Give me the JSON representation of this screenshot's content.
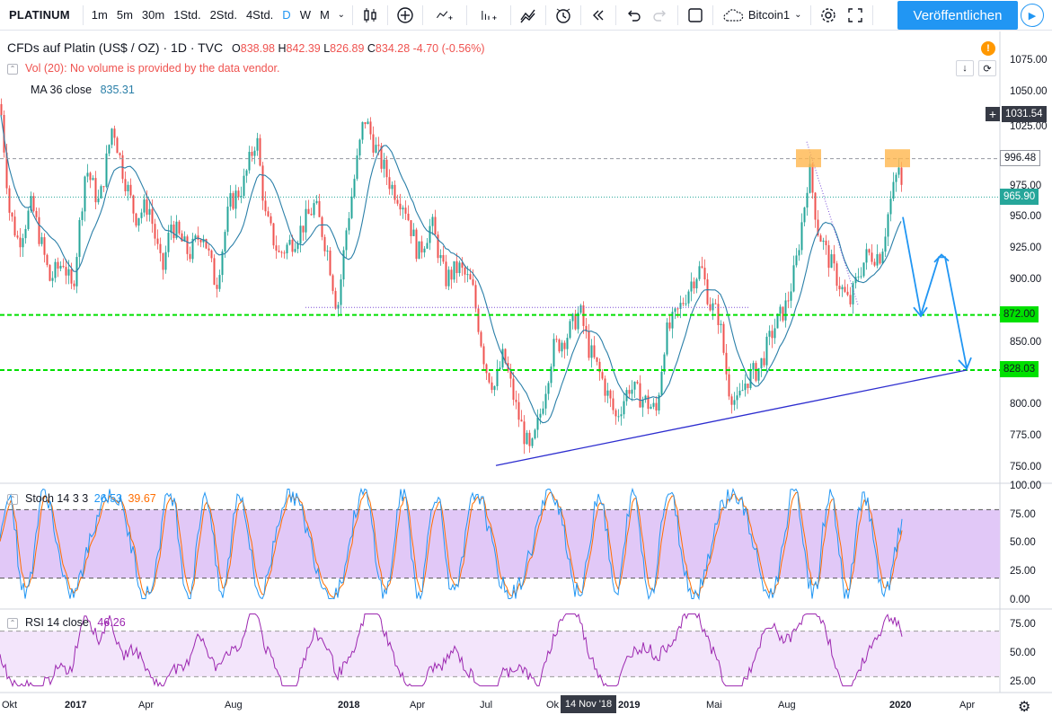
{
  "toolbar": {
    "symbol": "PLATINUM",
    "intervals": [
      "1m",
      "5m",
      "30m",
      "1Std.",
      "2Std.",
      "4Std.",
      "D",
      "W",
      "M"
    ],
    "active_interval": "D",
    "compare_label": "Bitcoin1",
    "publish_label": "Veröffentlichen"
  },
  "legend": {
    "title": "CFDs auf Platin (US$ / OZ) · 1D · TVC",
    "open_label": "O",
    "open": "838.98",
    "high_label": "H",
    "high": "842.39",
    "low_label": "L",
    "low": "826.89",
    "close_label": "C",
    "close": "834.28",
    "change": "-4.70 (-0.56%)",
    "vol_text": "Vol (20): No volume is provided by the data vendor.",
    "ma_label": "MA 36 close",
    "ma_value": "835.31",
    "stoch_label": "Stoch 14 3 3",
    "stoch_k": "26.53",
    "stoch_d": "39.67",
    "rsi_label": "RSI 14 close",
    "rsi_value": "46.26"
  },
  "price_axis": [
    "1075.00",
    "1050.00",
    "1025.00",
    "996.48",
    "975.00",
    "950.00",
    "925.00",
    "900.00",
    "875.00",
    "850.00",
    "825.00",
    "800.00",
    "775.00",
    "750.00"
  ],
  "price_tags": {
    "crosshair": "1031.54",
    "level_top": "996.48",
    "last": "965.90",
    "support_1": "872.00",
    "support_2": "828.03"
  },
  "stoch_axis": [
    "100.00",
    "75.00",
    "50.00",
    "25.00",
    "0.00"
  ],
  "rsi_axis": [
    "75.00",
    "50.00",
    "25.00"
  ],
  "time_axis": [
    "Okt",
    "2017",
    "Apr",
    "Aug",
    "2018",
    "Apr",
    "Jul",
    "Ok",
    "2019",
    "Mai",
    "Aug",
    "2020",
    "Apr"
  ],
  "time_highlight": "14 Nov '18",
  "colors": {
    "up": "#26a69a",
    "down": "#ef5350",
    "ma": "#2a7fa8",
    "support": "#00e000",
    "trend": "#2d2dcf",
    "stoch_k": "#2196f3",
    "stoch_d": "#ff6d00",
    "rsi": "#9c27b0",
    "accent": "#2196f3"
  }
}
